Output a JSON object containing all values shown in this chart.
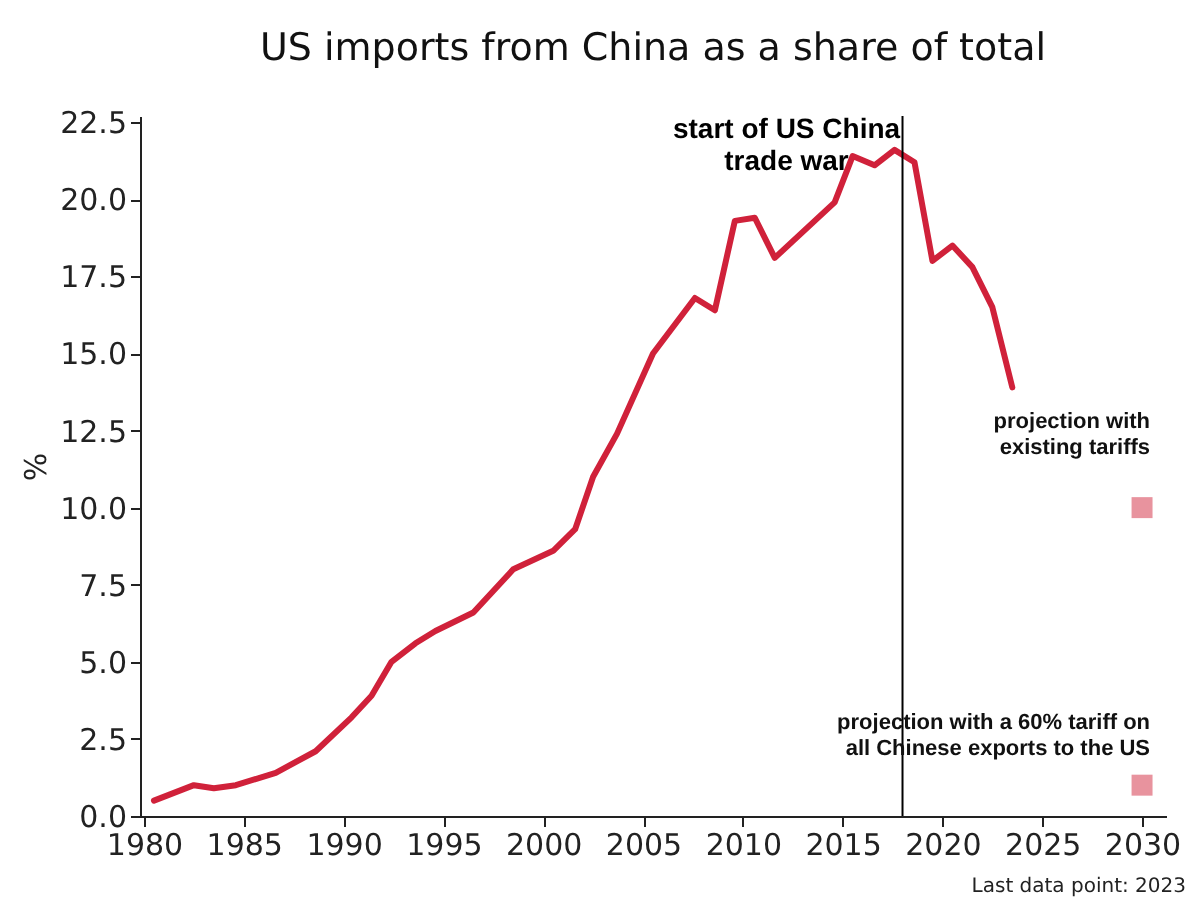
{
  "chart_data": {
    "type": "line",
    "title": "US imports from China as a share of total",
    "ylabel": "%",
    "xlim": [
      1979.8,
      2031.2
    ],
    "xticks": [
      1980,
      1985,
      1990,
      1995,
      2000,
      2005,
      2010,
      2015,
      2020,
      2025,
      2030
    ],
    "ylim": [
      0,
      22.7
    ],
    "yticks": [
      {
        "value": 0,
        "label": "0.0"
      },
      {
        "value": 2.5,
        "label": "2.5"
      },
      {
        "value": 5,
        "label": "5.0"
      },
      {
        "value": 7.5,
        "label": "7.5"
      },
      {
        "value": 10,
        "label": "10.0"
      },
      {
        "value": 12.5,
        "label": "12.5"
      },
      {
        "value": 15,
        "label": "15.0"
      },
      {
        "value": 17.5,
        "label": "17.5"
      },
      {
        "value": 20,
        "label": "20.0"
      },
      {
        "value": 22.5,
        "label": "22.5"
      }
    ],
    "grid": false,
    "legend": false,
    "series": [
      {
        "color": "#d0213a",
        "x": [
          1980.5,
          1982.5,
          1983.5,
          1984.6,
          1986.6,
          1988.6,
          1990.4,
          1991.4,
          1992.4,
          1993.6,
          1994.6,
          1996.5,
          1998.5,
          2000.5,
          2001.6,
          2002.5,
          2003.7,
          2005.5,
          2007.6,
          2008.6,
          2009.6,
          2010.6,
          2011.6,
          2013.6,
          2014.6,
          2015.5,
          2016.6,
          2017.6,
          2018.6,
          2019.5,
          2020.5,
          2021.5,
          2022.5,
          2023.5
        ],
        "values": [
          0.5,
          1.0,
          0.9,
          1.0,
          1.4,
          2.1,
          3.2,
          3.9,
          5.0,
          5.6,
          6.0,
          6.6,
          8.0,
          8.6,
          9.3,
          11.0,
          12.4,
          15.0,
          16.8,
          16.4,
          19.3,
          19.4,
          18.1,
          19.3,
          19.9,
          21.4,
          21.1,
          21.6,
          21.2,
          18.0,
          18.5,
          17.8,
          16.5,
          13.9
        ]
      },
      {
        "type": "scatter",
        "color": "#e8939e",
        "marker": "square",
        "x": [
          2030,
          2030
        ],
        "values": [
          10,
          1
        ]
      }
    ],
    "ref_lines": [
      {
        "axis": "x",
        "value": 2018,
        "label": "start of US China trade war",
        "color": "#000000"
      }
    ],
    "annotations": [
      {
        "text": "projection with existing tariffs",
        "x": 2030,
        "y": 10
      },
      {
        "text": "projection with a 60% tariff on all Chinese exports to the US",
        "x": 2030,
        "y": 1
      },
      "Last data point: 2023"
    ]
  }
}
